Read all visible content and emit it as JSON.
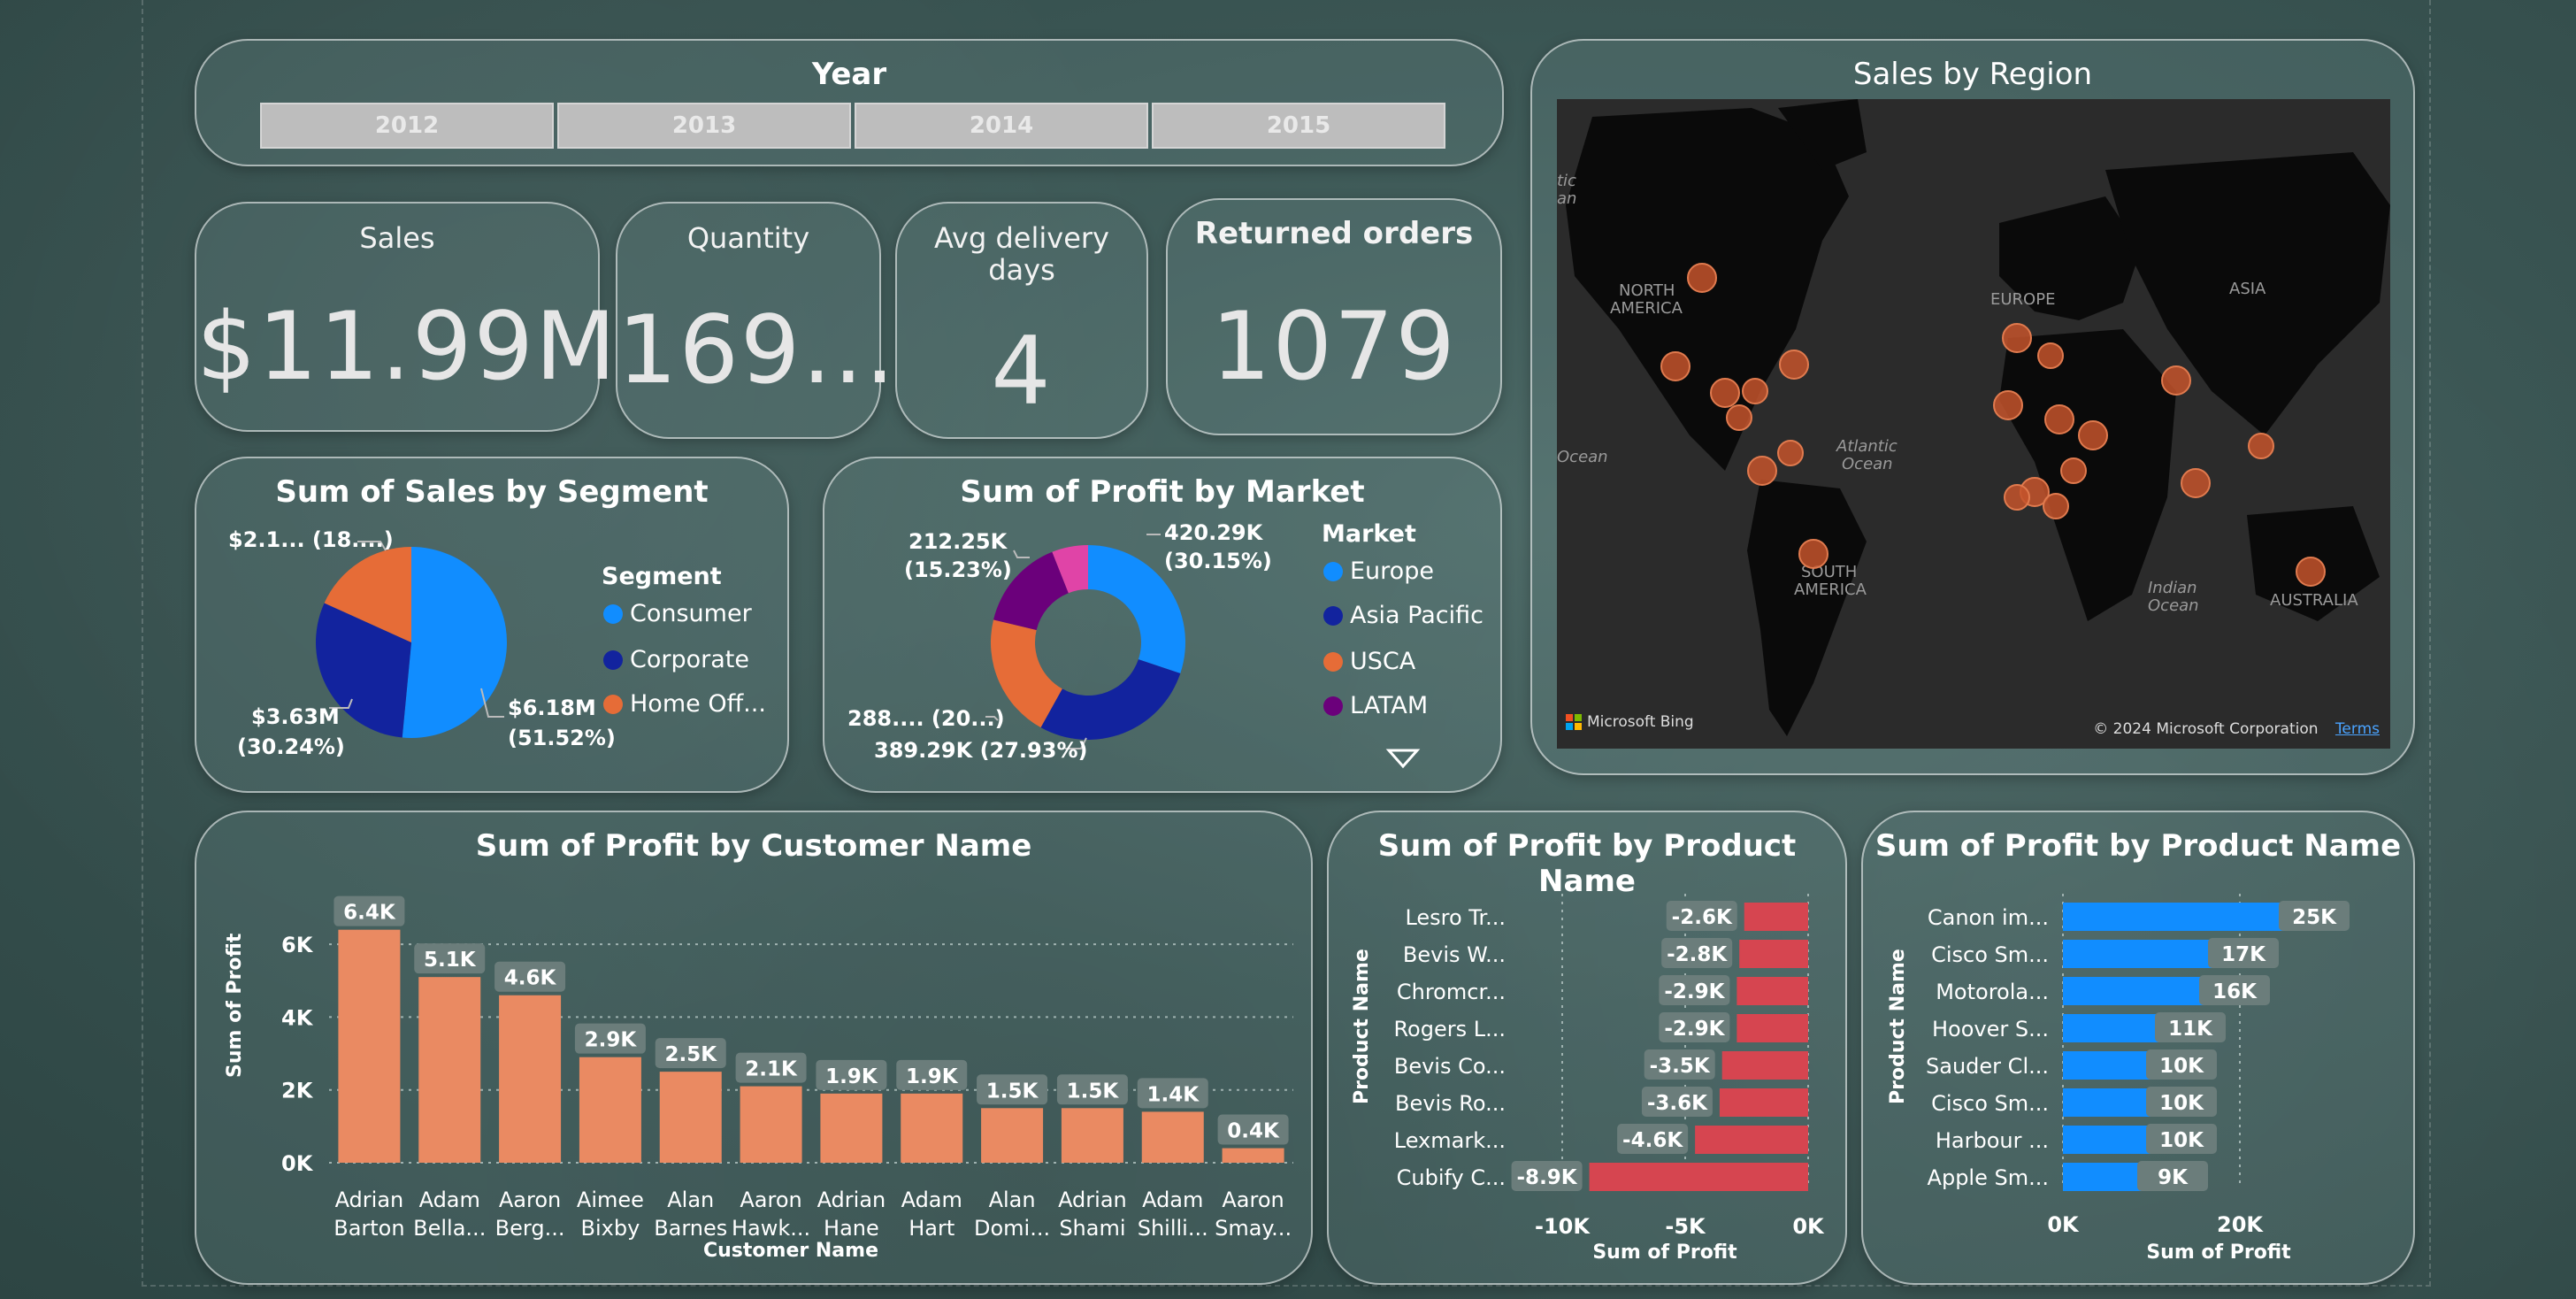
{
  "year_slicer": {
    "title": "Year",
    "options": [
      "2012",
      "2013",
      "2014",
      "2015"
    ]
  },
  "kpis": {
    "sales": {
      "label": "Sales",
      "value": "$11.99M"
    },
    "quantity": {
      "label": "Quantity",
      "value": "169..."
    },
    "avg_delivery": {
      "label_line1": "Avg delivery",
      "label_line2": "days",
      "value": "4"
    },
    "returned": {
      "label": "Returned orders",
      "value": "1079"
    }
  },
  "map": {
    "title": "Sales by Region",
    "labels": [
      "NORTH AMERICA",
      "EUROPE",
      "ASIA",
      "SOUTH AMERICA",
      "AUSTRALIA",
      "Atlantic Ocean",
      "Indian Ocean",
      "Ocean",
      "tic an"
    ],
    "attribution_brand": "Microsoft Bing",
    "copyright": "© 2024 Microsoft Corporation",
    "terms": "Terms",
    "bubble_color": "#c4532b"
  },
  "segment_pie": {
    "title": "Sum of Sales by Segment",
    "legend_title": "Segment",
    "legend": [
      {
        "name": "Consumer",
        "color": "#118dff"
      },
      {
        "name": "Corporate",
        "color": "#12239e"
      },
      {
        "name": "Home Off...",
        "color": "#e66c37"
      }
    ],
    "labels": {
      "consumer": [
        "$6.18M",
        "(51.52%)"
      ],
      "corporate": [
        "$3.63M",
        "(30.24%)"
      ],
      "home": [
        "$2.1... (18....)"
      ]
    }
  },
  "market_donut": {
    "title": "Sum of Profit by Market",
    "legend_title": "Market",
    "legend": [
      {
        "name": "Europe",
        "color": "#118dff"
      },
      {
        "name": "Asia Pacific",
        "color": "#12239e"
      },
      {
        "name": "USCA",
        "color": "#e66c37"
      },
      {
        "name": "LATAM",
        "color": "#6b007b"
      }
    ],
    "labels": {
      "europe": [
        "420.29K",
        "(30.15%)"
      ],
      "asia": [
        "389.29K (27.93%)"
      ],
      "usca": [
        "288.... (20...)"
      ],
      "latam": [
        "212.25K",
        "(15.23%)"
      ]
    }
  },
  "chart_data": [
    {
      "type": "bar",
      "title": "Sum of Profit by Customer Name",
      "xlabel": "Customer Name",
      "ylabel": "Sum of Profit",
      "categories": [
        [
          "Adrian",
          "Barton"
        ],
        [
          "Adam",
          "Bella..."
        ],
        [
          "Aaron",
          "Berg..."
        ],
        [
          "Aimee",
          "Bixby"
        ],
        [
          "Alan",
          "Barnes"
        ],
        [
          "Aaron",
          "Hawk..."
        ],
        [
          "Adrian",
          "Hane"
        ],
        [
          "Adam",
          "Hart"
        ],
        [
          "Alan",
          "Domi..."
        ],
        [
          "Adrian",
          "Shami"
        ],
        [
          "Adam",
          "Shilli..."
        ],
        [
          "Aaron",
          "Smay..."
        ]
      ],
      "values": [
        6400,
        5100,
        4600,
        2900,
        2500,
        2100,
        1900,
        1900,
        1500,
        1500,
        1400,
        400
      ],
      "data_labels": [
        "6.4K",
        "5.1K",
        "4.6K",
        "2.9K",
        "2.5K",
        "2.1K",
        "1.9K",
        "1.9K",
        "1.5K",
        "1.5K",
        "1.4K",
        "0.4K"
      ],
      "yticks": [
        "0K",
        "2K",
        "4K",
        "6K"
      ],
      "ylim": [
        0,
        7000
      ],
      "color": "#ea8a62"
    },
    {
      "type": "bar",
      "title": "Sum of Profit by Product Name",
      "xlabel": "Sum of Profit",
      "ylabel": "Product Name",
      "categories": [
        "Lesro Tr...",
        "Bevis W...",
        "Chromcr...",
        "Rogers L...",
        "Bevis Co...",
        "Bevis Ro...",
        "Lexmark...",
        "Cubify C..."
      ],
      "values": [
        -2600,
        -2800,
        -2900,
        -2900,
        -3500,
        -3600,
        -4600,
        -8900
      ],
      "data_labels": [
        "-2.6K",
        "-2.8K",
        "-2.9K",
        "-2.9K",
        "-3.5K",
        "-3.6K",
        "-4.6K",
        "-8.9K"
      ],
      "xticks": [
        "-10K",
        "-5K",
        "0K"
      ],
      "xlim": [
        -10000,
        0
      ],
      "color": "#d64550"
    },
    {
      "type": "bar",
      "title": "Sum of Profit by Product Name",
      "xlabel": "Sum of Profit",
      "ylabel": "Product Name",
      "categories": [
        "Canon im...",
        "Cisco Sm...",
        "Motorola...",
        "Hoover S...",
        "Sauder Cl...",
        "Cisco Sm...",
        "Harbour ...",
        "Apple Sm..."
      ],
      "values": [
        25000,
        17000,
        16000,
        11000,
        10000,
        10000,
        10000,
        9000
      ],
      "data_labels": [
        "25K",
        "17K",
        "16K",
        "11K",
        "10K",
        "10K",
        "10K",
        "9K"
      ],
      "xticks": [
        "0K",
        "20K"
      ],
      "xlim": [
        0,
        27000
      ],
      "color": "#118dff"
    }
  ]
}
